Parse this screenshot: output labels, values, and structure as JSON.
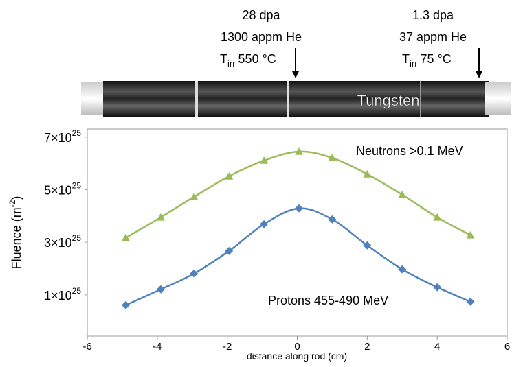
{
  "chart_data": {
    "type": "line",
    "rod_label": "Tungsten",
    "annotations": [
      {
        "lines": [
          "28 dpa",
          "1300 appm He"
        ],
        "temp": {
          "symbol": "T",
          "sub": "irr",
          "rest": "550 °C"
        }
      },
      {
        "lines": [
          "1.3 dpa",
          "37 appm He"
        ],
        "temp": {
          "symbol": "T",
          "sub": "irr",
          "rest": "75 °C"
        }
      }
    ],
    "x_label": "distance along rod (cm)",
    "y_label": {
      "text": "Fluence (m",
      "sup": "-2",
      "close": ")"
    },
    "x": [
      -4.9,
      -3.9,
      -2.95,
      -1.95,
      -0.95,
      0.05,
      1,
      2,
      3,
      4,
      4.95
    ],
    "series": [
      {
        "name": "Neutrons >0.1 MeV",
        "color": "#9bbb59",
        "marker": "triangle",
        "values": [
          3.17e+25,
          3.95e+25,
          4.73e+25,
          5.51e+25,
          6.11e+25,
          6.45e+25,
          6.21e+25,
          5.59e+25,
          4.81e+25,
          3.95e+25,
          3.27e+25
        ]
      },
      {
        "name": "Protons 455-490 MeV",
        "color": "#4f81bd",
        "marker": "diamond",
        "values": [
          6.1e+24,
          1.21e+25,
          1.81e+25,
          2.67e+25,
          3.69e+25,
          4.29e+25,
          3.87e+25,
          2.88e+25,
          1.97e+25,
          1.29e+25,
          7.4e+24
        ]
      }
    ],
    "xlim": [
      -6,
      6
    ],
    "xticks": [
      -6,
      -4,
      -2,
      0,
      2,
      4,
      6
    ],
    "ylim": [
      -5.7e+24,
      7.31e+25
    ],
    "yticks": [
      {
        "value": 1e+25,
        "label": {
          "base": "1×10",
          "sup": "25"
        }
      },
      {
        "value": 3e+25,
        "label": {
          "base": "3×10",
          "sup": "25"
        }
      },
      {
        "value": 5e+25,
        "label": {
          "base": "5×10",
          "sup": "25"
        }
      },
      {
        "value": 7e+25,
        "label": {
          "base": "7×10",
          "sup": "25"
        }
      }
    ],
    "grid": false
  }
}
